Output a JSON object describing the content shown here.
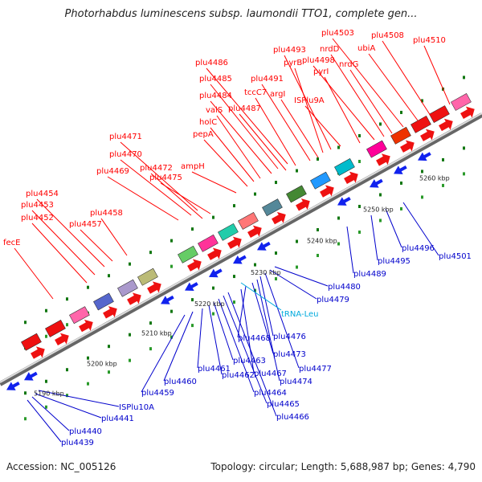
{
  "title": "Photorhabdus luminescens subsp. laumondii TTO1, complete gen...",
  "accession": "Accession: NC_005126",
  "summary": "Topology: circular; Length: 5,688,987 bp; Genes: 4,790",
  "colors": {
    "forward_label": "#ff0000",
    "reverse_label": "#0000cc",
    "rna_label": "#00aadd"
  },
  "kbp_marks": [
    "5190 kbp",
    "5200 kbp",
    "5210 kbp",
    "5220 kbp",
    "5230 kbp",
    "5240 kbp",
    "5250 kbp",
    "5260 kbp"
  ],
  "forward_genes": [
    "fecE",
    "plu4452",
    "plu4453",
    "plu4454",
    "plu4457",
    "plu4458",
    "plu4469",
    "plu4470",
    "plu4471",
    "plu4472",
    "plu4475",
    "ampH",
    "pepA",
    "holC",
    "valS",
    "plu4484",
    "plu4485",
    "plu4486",
    "plu4487",
    "tccC7",
    "plu4491",
    "argI",
    "pyrB",
    "plu4493",
    "ISPlu9A",
    "pyrI",
    "plu4498",
    "nrdD",
    "nrdG",
    "plu4503",
    "ubiA",
    "plu4508",
    "plu4510"
  ],
  "reverse_genes": [
    "plu4439",
    "plu4440",
    "plu4441",
    "ISPlu10A",
    "plu4459",
    "plu4460",
    "plu4461",
    "plu4462",
    "plu4463",
    "plu4464",
    "plu4465",
    "plu4466",
    "plu4467",
    "plu4468",
    "plu4473",
    "plu4474",
    "plu4476",
    "plu4477",
    "plu4479",
    "plu4480",
    "plu4489",
    "plu4495",
    "plu4496",
    "plu4501"
  ],
  "rna_genes": [
    "tRNA-Leu"
  ]
}
